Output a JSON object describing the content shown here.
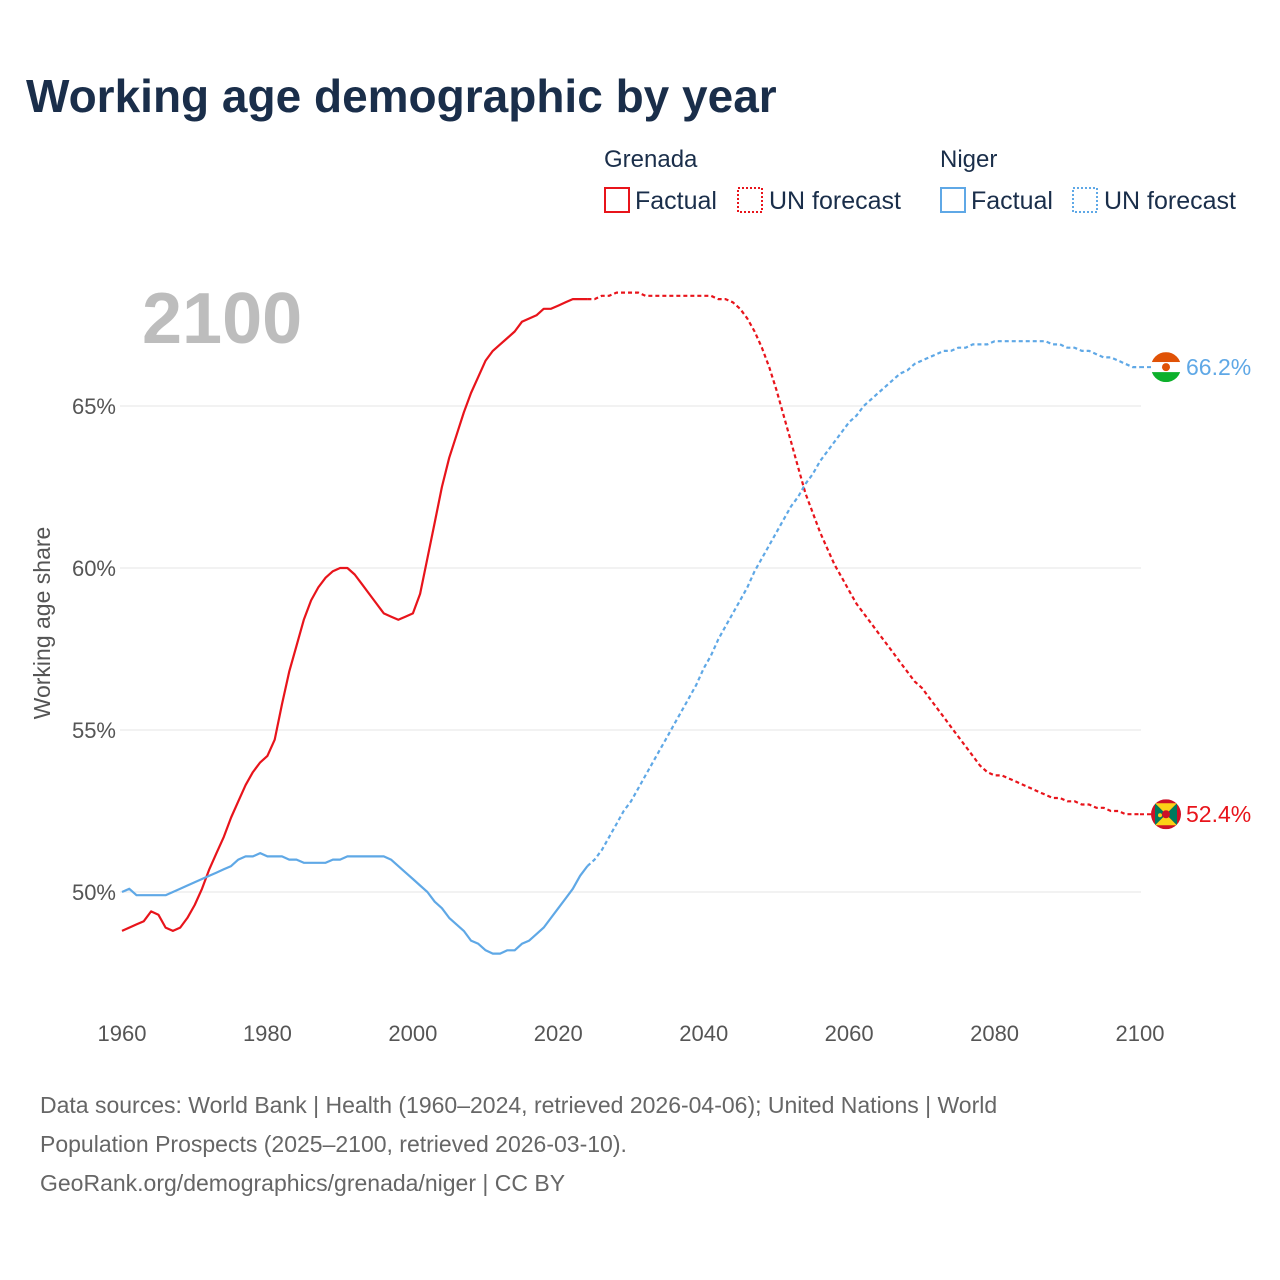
{
  "chart_data": {
    "type": "line",
    "title": "Working age demographic by year",
    "ylabel": "Working age share",
    "xlabel": "",
    "year_watermark": "2100",
    "xlim": [
      1960,
      2100
    ],
    "ylim": [
      46.5,
      71
    ],
    "x_ticks": [
      1960,
      1980,
      2000,
      2020,
      2040,
      2060,
      2080,
      2100
    ],
    "y_ticks": [
      50,
      55,
      60,
      65
    ],
    "y_tick_labels": [
      "50%",
      "55%",
      "60%",
      "65%"
    ],
    "legend": {
      "groups": [
        {
          "name": "Grenada",
          "factual_label": "Factual",
          "forecast_label": "UN forecast",
          "color": "#e8141b"
        },
        {
          "name": "Niger",
          "factual_label": "Factual",
          "forecast_label": "UN forecast",
          "color": "#5fa8e6"
        }
      ]
    },
    "series": [
      {
        "name": "Grenada",
        "color": "#e8141b",
        "end_label": "52.4%",
        "factual": [
          [
            1960,
            48.8
          ],
          [
            1961,
            48.9
          ],
          [
            1962,
            49.0
          ],
          [
            1963,
            49.1
          ],
          [
            1964,
            49.4
          ],
          [
            1965,
            49.3
          ],
          [
            1966,
            48.9
          ],
          [
            1967,
            48.8
          ],
          [
            1968,
            48.9
          ],
          [
            1969,
            49.2
          ],
          [
            1970,
            49.6
          ],
          [
            1971,
            50.1
          ],
          [
            1972,
            50.7
          ],
          [
            1973,
            51.2
          ],
          [
            1974,
            51.7
          ],
          [
            1975,
            52.3
          ],
          [
            1976,
            52.8
          ],
          [
            1977,
            53.3
          ],
          [
            1978,
            53.7
          ],
          [
            1979,
            54.0
          ],
          [
            1980,
            54.2
          ],
          [
            1981,
            54.7
          ],
          [
            1982,
            55.8
          ],
          [
            1983,
            56.8
          ],
          [
            1984,
            57.6
          ],
          [
            1985,
            58.4
          ],
          [
            1986,
            59.0
          ],
          [
            1987,
            59.4
          ],
          [
            1988,
            59.7
          ],
          [
            1989,
            59.9
          ],
          [
            1990,
            60.0
          ],
          [
            1991,
            60.0
          ],
          [
            1992,
            59.8
          ],
          [
            1993,
            59.5
          ],
          [
            1994,
            59.2
          ],
          [
            1995,
            58.9
          ],
          [
            1996,
            58.6
          ],
          [
            1997,
            58.5
          ],
          [
            1998,
            58.4
          ],
          [
            1999,
            58.5
          ],
          [
            2000,
            58.6
          ],
          [
            2001,
            59.2
          ],
          [
            2002,
            60.3
          ],
          [
            2003,
            61.4
          ],
          [
            2004,
            62.5
          ],
          [
            2005,
            63.4
          ],
          [
            2006,
            64.1
          ],
          [
            2007,
            64.8
          ],
          [
            2008,
            65.4
          ],
          [
            2009,
            65.9
          ],
          [
            2010,
            66.4
          ],
          [
            2011,
            66.7
          ],
          [
            2012,
            66.9
          ],
          [
            2013,
            67.1
          ],
          [
            2014,
            67.3
          ],
          [
            2015,
            67.6
          ],
          [
            2016,
            67.7
          ],
          [
            2017,
            67.8
          ],
          [
            2018,
            68.0
          ],
          [
            2019,
            68.0
          ],
          [
            2020,
            68.1
          ],
          [
            2021,
            68.2
          ],
          [
            2022,
            68.3
          ],
          [
            2023,
            68.3
          ],
          [
            2024,
            68.3
          ]
        ],
        "forecast": [
          [
            2024,
            68.3
          ],
          [
            2025,
            68.3
          ],
          [
            2026,
            68.4
          ],
          [
            2027,
            68.4
          ],
          [
            2028,
            68.5
          ],
          [
            2029,
            68.5
          ],
          [
            2030,
            68.5
          ],
          [
            2031,
            68.5
          ],
          [
            2032,
            68.4
          ],
          [
            2033,
            68.4
          ],
          [
            2034,
            68.4
          ],
          [
            2035,
            68.4
          ],
          [
            2036,
            68.4
          ],
          [
            2037,
            68.4
          ],
          [
            2038,
            68.4
          ],
          [
            2039,
            68.4
          ],
          [
            2040,
            68.4
          ],
          [
            2041,
            68.4
          ],
          [
            2042,
            68.3
          ],
          [
            2043,
            68.3
          ],
          [
            2044,
            68.2
          ],
          [
            2045,
            68.0
          ],
          [
            2046,
            67.7
          ],
          [
            2047,
            67.3
          ],
          [
            2048,
            66.8
          ],
          [
            2049,
            66.2
          ],
          [
            2050,
            65.5
          ],
          [
            2051,
            64.7
          ],
          [
            2052,
            63.9
          ],
          [
            2053,
            63.1
          ],
          [
            2054,
            62.3
          ],
          [
            2055,
            61.7
          ],
          [
            2056,
            61.1
          ],
          [
            2057,
            60.6
          ],
          [
            2058,
            60.1
          ],
          [
            2059,
            59.7
          ],
          [
            2060,
            59.3
          ],
          [
            2061,
            58.9
          ],
          [
            2062,
            58.6
          ],
          [
            2063,
            58.3
          ],
          [
            2064,
            58.0
          ],
          [
            2065,
            57.7
          ],
          [
            2066,
            57.4
          ],
          [
            2067,
            57.1
          ],
          [
            2068,
            56.8
          ],
          [
            2069,
            56.5
          ],
          [
            2070,
            56.3
          ],
          [
            2071,
            56.0
          ],
          [
            2072,
            55.7
          ],
          [
            2073,
            55.4
          ],
          [
            2074,
            55.1
          ],
          [
            2075,
            54.8
          ],
          [
            2076,
            54.5
          ],
          [
            2077,
            54.2
          ],
          [
            2078,
            53.9
          ],
          [
            2079,
            53.7
          ],
          [
            2080,
            53.6
          ],
          [
            2081,
            53.6
          ],
          [
            2082,
            53.5
          ],
          [
            2083,
            53.4
          ],
          [
            2084,
            53.3
          ],
          [
            2085,
            53.2
          ],
          [
            2086,
            53.1
          ],
          [
            2087,
            53.0
          ],
          [
            2088,
            52.9
          ],
          [
            2089,
            52.9
          ],
          [
            2090,
            52.8
          ],
          [
            2091,
            52.8
          ],
          [
            2092,
            52.7
          ],
          [
            2093,
            52.7
          ],
          [
            2094,
            52.6
          ],
          [
            2095,
            52.6
          ],
          [
            2096,
            52.5
          ],
          [
            2097,
            52.5
          ],
          [
            2098,
            52.4
          ],
          [
            2099,
            52.4
          ],
          [
            2100,
            52.4
          ]
        ]
      },
      {
        "name": "Niger",
        "color": "#5fa8e6",
        "end_label": "66.2%",
        "factual": [
          [
            1960,
            50.0
          ],
          [
            1961,
            50.1
          ],
          [
            1962,
            49.9
          ],
          [
            1963,
            49.9
          ],
          [
            1964,
            49.9
          ],
          [
            1965,
            49.9
          ],
          [
            1966,
            49.9
          ],
          [
            1967,
            50.0
          ],
          [
            1968,
            50.1
          ],
          [
            1969,
            50.2
          ],
          [
            1970,
            50.3
          ],
          [
            1971,
            50.4
          ],
          [
            1972,
            50.5
          ],
          [
            1973,
            50.6
          ],
          [
            1974,
            50.7
          ],
          [
            1975,
            50.8
          ],
          [
            1976,
            51.0
          ],
          [
            1977,
            51.1
          ],
          [
            1978,
            51.1
          ],
          [
            1979,
            51.2
          ],
          [
            1980,
            51.1
          ],
          [
            1981,
            51.1
          ],
          [
            1982,
            51.1
          ],
          [
            1983,
            51.0
          ],
          [
            1984,
            51.0
          ],
          [
            1985,
            50.9
          ],
          [
            1986,
            50.9
          ],
          [
            1987,
            50.9
          ],
          [
            1988,
            50.9
          ],
          [
            1989,
            51.0
          ],
          [
            1990,
            51.0
          ],
          [
            1991,
            51.1
          ],
          [
            1992,
            51.1
          ],
          [
            1993,
            51.1
          ],
          [
            1994,
            51.1
          ],
          [
            1995,
            51.1
          ],
          [
            1996,
            51.1
          ],
          [
            1997,
            51.0
          ],
          [
            1998,
            50.8
          ],
          [
            1999,
            50.6
          ],
          [
            2000,
            50.4
          ],
          [
            2001,
            50.2
          ],
          [
            2002,
            50.0
          ],
          [
            2003,
            49.7
          ],
          [
            2004,
            49.5
          ],
          [
            2005,
            49.2
          ],
          [
            2006,
            49.0
          ],
          [
            2007,
            48.8
          ],
          [
            2008,
            48.5
          ],
          [
            2009,
            48.4
          ],
          [
            2010,
            48.2
          ],
          [
            2011,
            48.1
          ],
          [
            2012,
            48.1
          ],
          [
            2013,
            48.2
          ],
          [
            2014,
            48.2
          ],
          [
            2015,
            48.4
          ],
          [
            2016,
            48.5
          ],
          [
            2017,
            48.7
          ],
          [
            2018,
            48.9
          ],
          [
            2019,
            49.2
          ],
          [
            2020,
            49.5
          ],
          [
            2021,
            49.8
          ],
          [
            2022,
            50.1
          ],
          [
            2023,
            50.5
          ],
          [
            2024,
            50.8
          ]
        ],
        "forecast": [
          [
            2024,
            50.8
          ],
          [
            2025,
            51.0
          ],
          [
            2026,
            51.3
          ],
          [
            2027,
            51.7
          ],
          [
            2028,
            52.1
          ],
          [
            2029,
            52.5
          ],
          [
            2030,
            52.8
          ],
          [
            2031,
            53.2
          ],
          [
            2032,
            53.6
          ],
          [
            2033,
            54.0
          ],
          [
            2034,
            54.4
          ],
          [
            2035,
            54.8
          ],
          [
            2036,
            55.2
          ],
          [
            2037,
            55.6
          ],
          [
            2038,
            56.0
          ],
          [
            2039,
            56.4
          ],
          [
            2040,
            56.9
          ],
          [
            2041,
            57.3
          ],
          [
            2042,
            57.8
          ],
          [
            2043,
            58.2
          ],
          [
            2044,
            58.6
          ],
          [
            2045,
            59.0
          ],
          [
            2046,
            59.4
          ],
          [
            2047,
            59.9
          ],
          [
            2048,
            60.3
          ],
          [
            2049,
            60.7
          ],
          [
            2050,
            61.1
          ],
          [
            2051,
            61.5
          ],
          [
            2052,
            61.9
          ],
          [
            2053,
            62.2
          ],
          [
            2054,
            62.6
          ],
          [
            2055,
            62.9
          ],
          [
            2056,
            63.3
          ],
          [
            2057,
            63.6
          ],
          [
            2058,
            63.9
          ],
          [
            2059,
            64.2
          ],
          [
            2060,
            64.5
          ],
          [
            2061,
            64.7
          ],
          [
            2062,
            65.0
          ],
          [
            2063,
            65.2
          ],
          [
            2064,
            65.4
          ],
          [
            2065,
            65.6
          ],
          [
            2066,
            65.8
          ],
          [
            2067,
            66.0
          ],
          [
            2068,
            66.1
          ],
          [
            2069,
            66.3
          ],
          [
            2070,
            66.4
          ],
          [
            2071,
            66.5
          ],
          [
            2072,
            66.6
          ],
          [
            2073,
            66.7
          ],
          [
            2074,
            66.7
          ],
          [
            2075,
            66.8
          ],
          [
            2076,
            66.8
          ],
          [
            2077,
            66.9
          ],
          [
            2078,
            66.9
          ],
          [
            2079,
            66.9
          ],
          [
            2080,
            67.0
          ],
          [
            2081,
            67.0
          ],
          [
            2082,
            67.0
          ],
          [
            2083,
            67.0
          ],
          [
            2084,
            67.0
          ],
          [
            2085,
            67.0
          ],
          [
            2086,
            67.0
          ],
          [
            2087,
            67.0
          ],
          [
            2088,
            66.9
          ],
          [
            2089,
            66.9
          ],
          [
            2090,
            66.8
          ],
          [
            2091,
            66.8
          ],
          [
            2092,
            66.7
          ],
          [
            2093,
            66.7
          ],
          [
            2094,
            66.6
          ],
          [
            2095,
            66.5
          ],
          [
            2096,
            66.5
          ],
          [
            2097,
            66.4
          ],
          [
            2098,
            66.3
          ],
          [
            2099,
            66.2
          ],
          [
            2100,
            66.2
          ]
        ]
      }
    ],
    "source_lines": [
      "Data sources: World Bank | Health (1960–2024, retrieved 2026-04-06); United Nations | World",
      "Population Prospects (2025–2100, retrieved 2026-03-10).",
      "GeoRank.org/demographics/grenada/niger | CC BY"
    ]
  },
  "flags": {
    "grenada": {
      "colors": [
        "#ce1126",
        "#fcd116",
        "#007a5e"
      ],
      "icon": "grenada-flag-icon"
    },
    "niger": {
      "colors": [
        "#e05206",
        "#ffffff",
        "#0db02b"
      ],
      "icon": "niger-flag-icon"
    }
  }
}
